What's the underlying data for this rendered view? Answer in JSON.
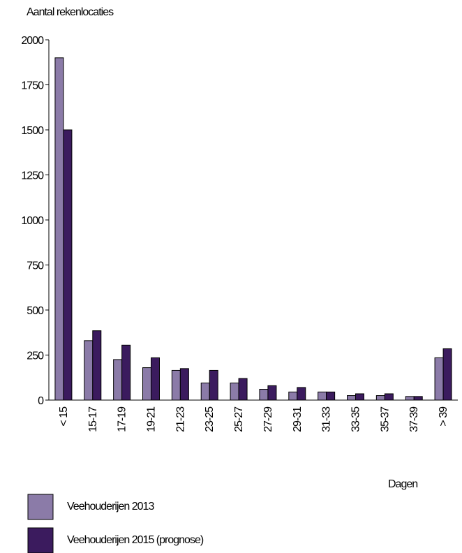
{
  "chart_data": {
    "type": "bar",
    "y_label": "Aantal rekenlocaties",
    "x_label": "Dagen",
    "categories": [
      "< 15",
      "15-17",
      "17-19",
      "19-21",
      "21-23",
      "23-25",
      "25-27",
      "27-29",
      "29-31",
      "31-33",
      "33-35",
      "35-37",
      "37-39",
      "> 39"
    ],
    "series": [
      {
        "name": "Veehouderijen 2013",
        "color": "#8b7ba8",
        "values": [
          1900,
          330,
          225,
          180,
          165,
          95,
          95,
          60,
          45,
          45,
          25,
          25,
          20,
          235
        ]
      },
      {
        "name": "Veehouderijen 2015 (prognose)",
        "color": "#3b1b5e",
        "values": [
          1500,
          385,
          305,
          235,
          175,
          165,
          120,
          80,
          70,
          45,
          35,
          35,
          20,
          285
        ]
      }
    ],
    "ylim": [
      0,
      2000
    ],
    "yticks": [
      0,
      250,
      500,
      750,
      1000,
      1250,
      1500,
      1750,
      2000
    ]
  }
}
